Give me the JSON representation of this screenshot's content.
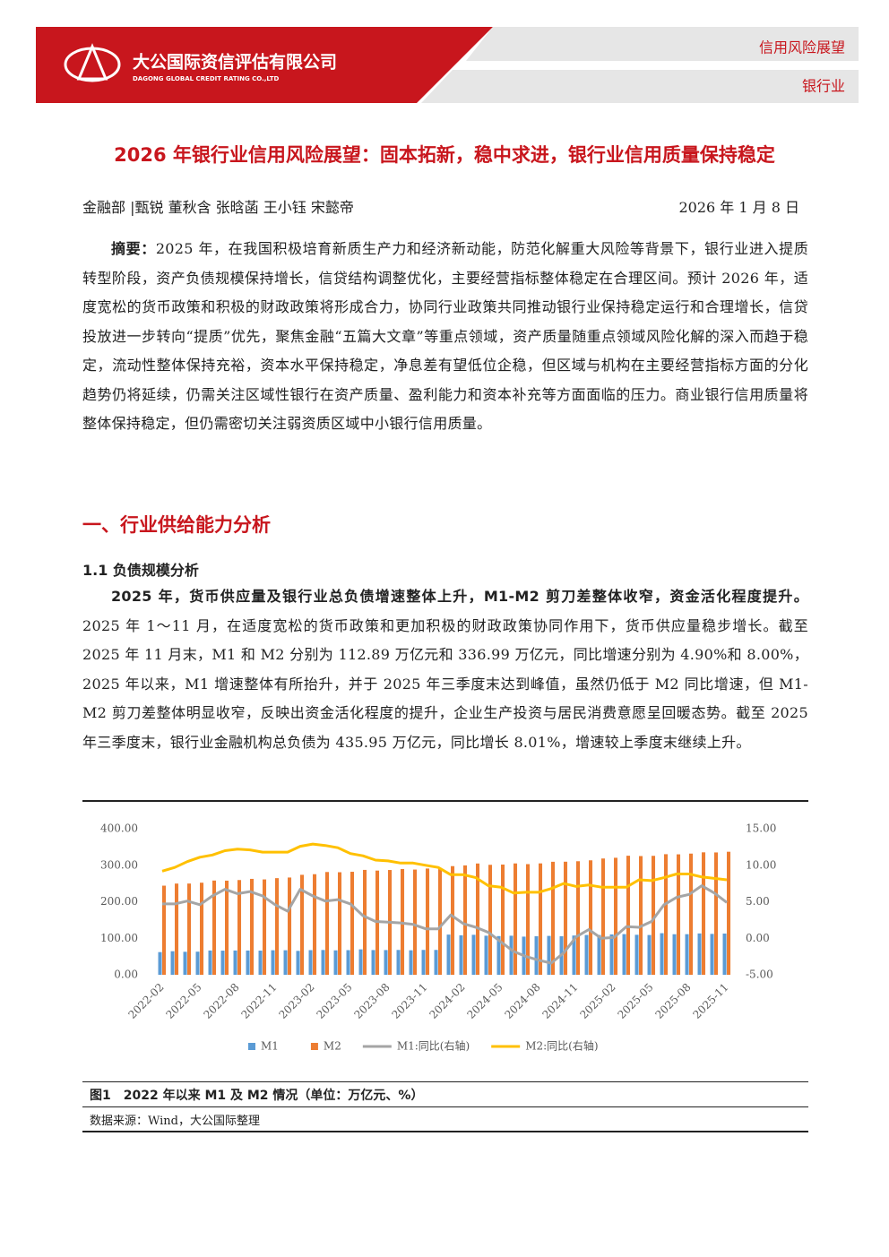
{
  "header": {
    "company_cn": "大公国际资信评估有限公司",
    "company_en": "DAGONG GLOBAL CREDIT RATING CO.,LTD",
    "tag1": "信用风险展望",
    "tag2": "银行业"
  },
  "title": "2026 年银行业信用风险展望：固本拓新，稳中求进，银行业信用质量保持稳定",
  "authors": "金融部 |甄锐 董秋含 张晗菡 王小钰 宋懿帝",
  "date": "2026 年 1 月 8 日",
  "abstract": {
    "label": "摘要：",
    "text": "2025 年，在我国积极培育新质生产力和经济新动能，防范化解重大风险等背景下，银行业进入提质转型阶段，资产负债规模保持增长，信贷结构调整优化，主要经营指标整体稳定在合理区间。预计 2026 年，适度宽松的货币政策和积极的财政政策将形成合力，协同行业政策共同推动银行业保持稳定运行和合理增长，信贷投放进一步转向“提质”优先，聚焦金融“五篇大文章”等重点领域，资产质量随重点领域风险化解的深入而趋于稳定，流动性整体保持充裕，资本水平保持稳定，净息差有望低位企稳，但区域与机构在主要经营指标方面的分化趋势仍将延续，仍需关注区域性银行在资产质量、盈利能力和资本补充等方面面临的压力。商业银行信用质量将整体保持稳定，但仍需密切关注弱资质区域中小银行信用质量。"
  },
  "section": "一、行业供给能力分析",
  "subsection": "1.1 负债规模分析",
  "paragraph": {
    "lead": "2025 年，货币供应量及银行业总负债增速整体上升，M1-M2 剪刀差整体收窄，资金活化程度提升。",
    "text": "2025 年 1～11 月，在适度宽松的货币政策和更加积极的财政政策协同作用下，货币供应量稳步增长。截至 2025 年 11 月末，M1 和 M2 分别为 112.89 万亿元和 336.99 万亿元，同比增速分别为 4.90%和 8.00%，2025 年以来，M1 增速整体有所抬升，并于 2025 年三季度末达到峰值，虽然仍低于 M2 同比增速，但 M1-M2 剪刀差整体明显收窄，反映出资金活化程度的提升，企业生产投资与居民消费意愿呈回暖态势。截至 2025 年三季度末，银行业金融机构总负债为 435.95 万亿元，同比增长 8.01%，增速较上季度末继续上升。"
  },
  "figure": {
    "caption": "图1　2022 年以来 M1 及 M2 情况（单位：万亿元、%）",
    "source": "数据来源：Wind，大公国际整理"
  },
  "chart_data": {
    "type": "bar_line",
    "categories": [
      "2022-02",
      null,
      null,
      "2022-05",
      null,
      null,
      "2022-08",
      null,
      null,
      "2022-11",
      null,
      null,
      "2023-02",
      null,
      null,
      "2023-05",
      null,
      null,
      "2023-08",
      null,
      null,
      "2023-11",
      null,
      null,
      "2024-02",
      null,
      null,
      "2024-05",
      null,
      null,
      "2024-08",
      null,
      null,
      "2024-11",
      null,
      null,
      "2025-02",
      null,
      null,
      "2025-05",
      null,
      null,
      "2025-08",
      null,
      null,
      "2025-11"
    ],
    "series": [
      {
        "name": "M1",
        "color": "#5b9bd5",
        "kind": "bar",
        "values": [
          62.1,
          64.5,
          63.0,
          63.3,
          66.5,
          66.1,
          66.5,
          66.4,
          66.2,
          67.2,
          67.2,
          65.5,
          67.5,
          67.9,
          66.9,
          67.5,
          69.6,
          67.7,
          67.7,
          68.0,
          67.1,
          68.1,
          68.1,
          110.0,
          108.0,
          109.5,
          107.0,
          106.0,
          107.0,
          104.5,
          105.5,
          106.5,
          105.5,
          107.5,
          109.0,
          109.0,
          110.5,
          111.4,
          109.5,
          108.9,
          113.9,
          111.1,
          111.2,
          113.2,
          112.0,
          112.89
        ]
      },
      {
        "name": "M2",
        "color": "#ed7d31",
        "kind": "bar",
        "values": [
          244.1,
          249.8,
          249.9,
          252.2,
          258.1,
          257.8,
          259.5,
          262.7,
          261.2,
          264.7,
          266.4,
          273.8,
          275.5,
          281.5,
          280.9,
          282.1,
          287.3,
          285.4,
          287.0,
          289.7,
          288.2,
          291.0,
          292.3,
          297.6,
          299.6,
          304.8,
          301.2,
          301.9,
          305.0,
          303.1,
          305.1,
          309.5,
          309.7,
          311.0,
          313.5,
          318.5,
          320.5,
          326.1,
          325.2,
          325.8,
          330.3,
          329.9,
          331.9,
          335.4,
          335.1,
          336.99
        ]
      },
      {
        "name": "M1:同比(右轴)",
        "color": "#a5a5a5",
        "kind": "line",
        "axis": "y2",
        "values": [
          4.7,
          4.7,
          5.1,
          4.6,
          5.8,
          6.7,
          6.1,
          6.4,
          5.8,
          4.6,
          3.7,
          6.7,
          5.8,
          5.1,
          5.3,
          4.7,
          3.1,
          2.3,
          2.2,
          2.1,
          1.9,
          1.3,
          1.3,
          3.2,
          2.0,
          1.5,
          0.8,
          -0.5,
          -1.8,
          -2.5,
          -3.0,
          -3.4,
          -2.0,
          0.2,
          1.2,
          0.0,
          0.1,
          1.6,
          1.5,
          2.3,
          4.6,
          5.6,
          6.0,
          7.2,
          6.2,
          4.9
        ]
      },
      {
        "name": "M2:同比(右轴)",
        "color": "#ffc000",
        "kind": "line",
        "axis": "y2",
        "values": [
          9.2,
          9.7,
          10.5,
          11.1,
          11.4,
          12.0,
          12.2,
          12.1,
          11.8,
          11.8,
          11.8,
          12.6,
          12.9,
          12.7,
          12.4,
          11.6,
          11.3,
          10.7,
          10.6,
          10.3,
          10.3,
          10.0,
          9.7,
          8.7,
          8.7,
          8.3,
          7.2,
          7.0,
          6.2,
          6.3,
          6.3,
          6.8,
          7.5,
          7.1,
          7.3,
          7.0,
          7.0,
          7.0,
          8.0,
          7.9,
          8.3,
          8.8,
          8.8,
          8.4,
          8.2,
          8.0
        ]
      }
    ],
    "ylim": [
      0,
      400
    ],
    "yticks": [
      {
        "value": 0,
        "label": "0.00"
      },
      {
        "value": 100,
        "label": "100.00"
      },
      {
        "value": 200,
        "label": "200.00"
      },
      {
        "value": 300,
        "label": "300.00"
      },
      {
        "value": 400,
        "label": "400.00"
      }
    ],
    "y2lim": [
      -5,
      15
    ],
    "y2ticks": [
      {
        "value": -5,
        "label": "-5.00"
      },
      {
        "value": 0,
        "label": "0.00"
      },
      {
        "value": 5,
        "label": "5.00"
      },
      {
        "value": 10,
        "label": "10.00"
      },
      {
        "value": 15,
        "label": "15.00"
      }
    ],
    "grid": false,
    "legend": "bottom"
  }
}
